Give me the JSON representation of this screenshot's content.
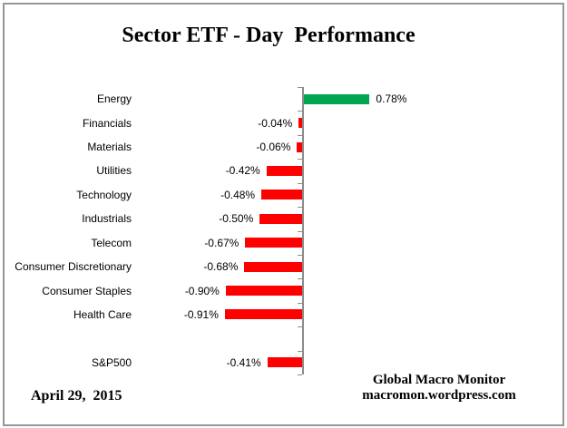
{
  "title": "Sector ETF - Day  Performance",
  "footer": {
    "date": "April 29,  2015",
    "attribution_line1": "Global Macro Monitor",
    "attribution_line2": "macromon.wordpress.com"
  },
  "colors": {
    "positive": "#00A651",
    "negative": "#FF0000",
    "axis": "#8C8C8C",
    "border": "#969696",
    "text": "#000000"
  },
  "chart_data": {
    "type": "bar",
    "orientation": "horizontal",
    "title": "Sector ETF - Day  Performance",
    "unit": "%",
    "baseline": 0,
    "gridlines": false,
    "value_axis_labels_visible": false,
    "categories": [
      "Energy",
      "Financials",
      "Materials",
      "Utilities",
      "Technology",
      "Industrials",
      "Telecom",
      "Consumer Discretionary",
      "Consumer Staples",
      "Health Care",
      "",
      "S&P500"
    ],
    "values": [
      0.78,
      -0.04,
      -0.06,
      -0.42,
      -0.48,
      -0.5,
      -0.67,
      -0.68,
      -0.9,
      -0.91,
      null,
      -0.41
    ],
    "labels": [
      "0.78%",
      "-0.04%",
      "-0.06%",
      "-0.42%",
      "-0.48%",
      "-0.50%",
      "-0.67%",
      "-0.68%",
      "-0.90%",
      "-0.91%",
      "",
      "-0.41%"
    ]
  }
}
